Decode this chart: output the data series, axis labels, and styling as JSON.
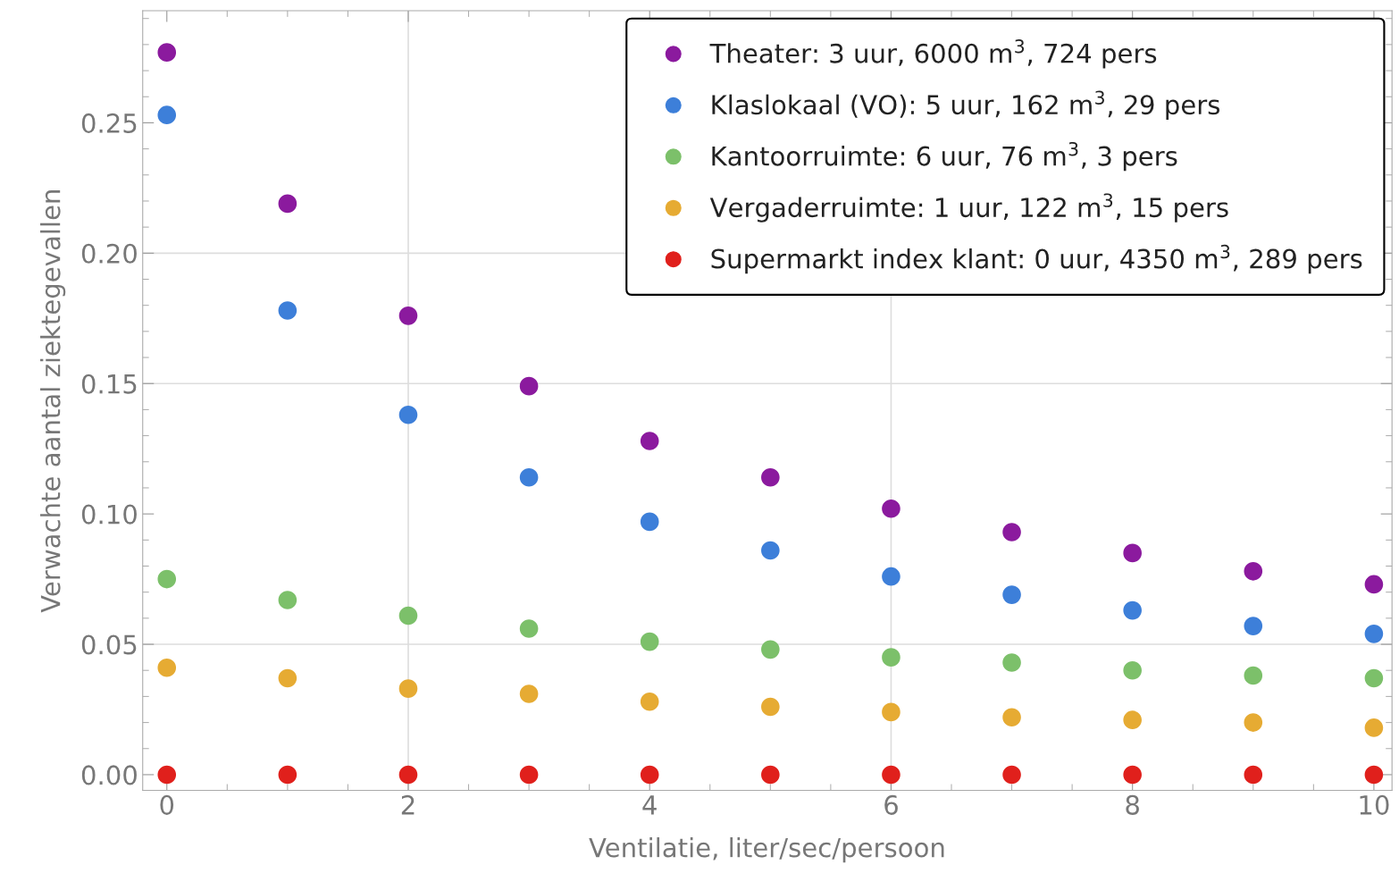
{
  "chart_data": {
    "type": "scatter",
    "xlabel": "Ventilatie, liter/sec/persoon",
    "ylabel": "Verwachte aantal ziektegevallen",
    "x": [
      0,
      1,
      2,
      3,
      4,
      5,
      6,
      7,
      8,
      9,
      10
    ],
    "series": [
      {
        "name": "Theater: 3 uur, 6000 m$^{3}$, 724 pers",
        "color": "#8b1a9e",
        "values": [
          0.277,
          0.219,
          0.176,
          0.149,
          0.128,
          0.114,
          0.102,
          0.093,
          0.085,
          0.078,
          0.073
        ]
      },
      {
        "name": "Klaslokaal (VO): 5 uur, 162 m$^{3}$, 29 pers",
        "color": "#3d7fd9",
        "values": [
          0.253,
          0.178,
          0.138,
          0.114,
          0.097,
          0.086,
          0.076,
          0.069,
          0.063,
          0.057,
          0.054
        ]
      },
      {
        "name": "Kantoorruimte: 6 uur, 76 m$^{3}$, 3 pers",
        "color": "#7cc06a",
        "values": [
          0.075,
          0.067,
          0.061,
          0.056,
          0.051,
          0.048,
          0.045,
          0.043,
          0.04,
          0.038,
          0.037
        ]
      },
      {
        "name": "Vergaderruimte: 1 uur, 122 m$^{3}$, 15 pers",
        "color": "#e6ab33",
        "values": [
          0.041,
          0.037,
          0.033,
          0.031,
          0.028,
          0.026,
          0.024,
          0.022,
          0.021,
          0.02,
          0.018
        ]
      },
      {
        "name": "Supermarkt index klant: 0 uur, 4350 m$^{3}$, 289 pers",
        "color": "#e0201c",
        "values": [
          0,
          0,
          0,
          0,
          0,
          0,
          0,
          0,
          0,
          0,
          0
        ]
      }
    ],
    "xlim": [
      -0.2,
      10.15
    ],
    "ylim": [
      -0.006,
      0.293
    ],
    "xticks": [
      0,
      2,
      4,
      6,
      8,
      10
    ],
    "yticks": [
      {
        "value": 0,
        "label": "0.00"
      },
      {
        "value": 0.05,
        "label": "0.05"
      },
      {
        "value": 0.1,
        "label": "0.10"
      },
      {
        "value": 0.15,
        "label": "0.15"
      },
      {
        "value": 0.2,
        "label": "0.20"
      },
      {
        "value": 0.25,
        "label": "0.25"
      }
    ],
    "ref_lines": [
      {
        "axis": "x",
        "value": 2,
        "color": "#dddddd"
      },
      {
        "axis": "x",
        "value": 6,
        "color": "#dddddd"
      },
      {
        "axis": "y",
        "value": 0.05,
        "color": "#dddddd"
      },
      {
        "axis": "y",
        "value": 0.15,
        "color": "#dddddd"
      },
      {
        "axis": "y",
        "value": 0.2,
        "color": "#dddddd"
      }
    ],
    "marker": "circle",
    "legend": "top right"
  }
}
